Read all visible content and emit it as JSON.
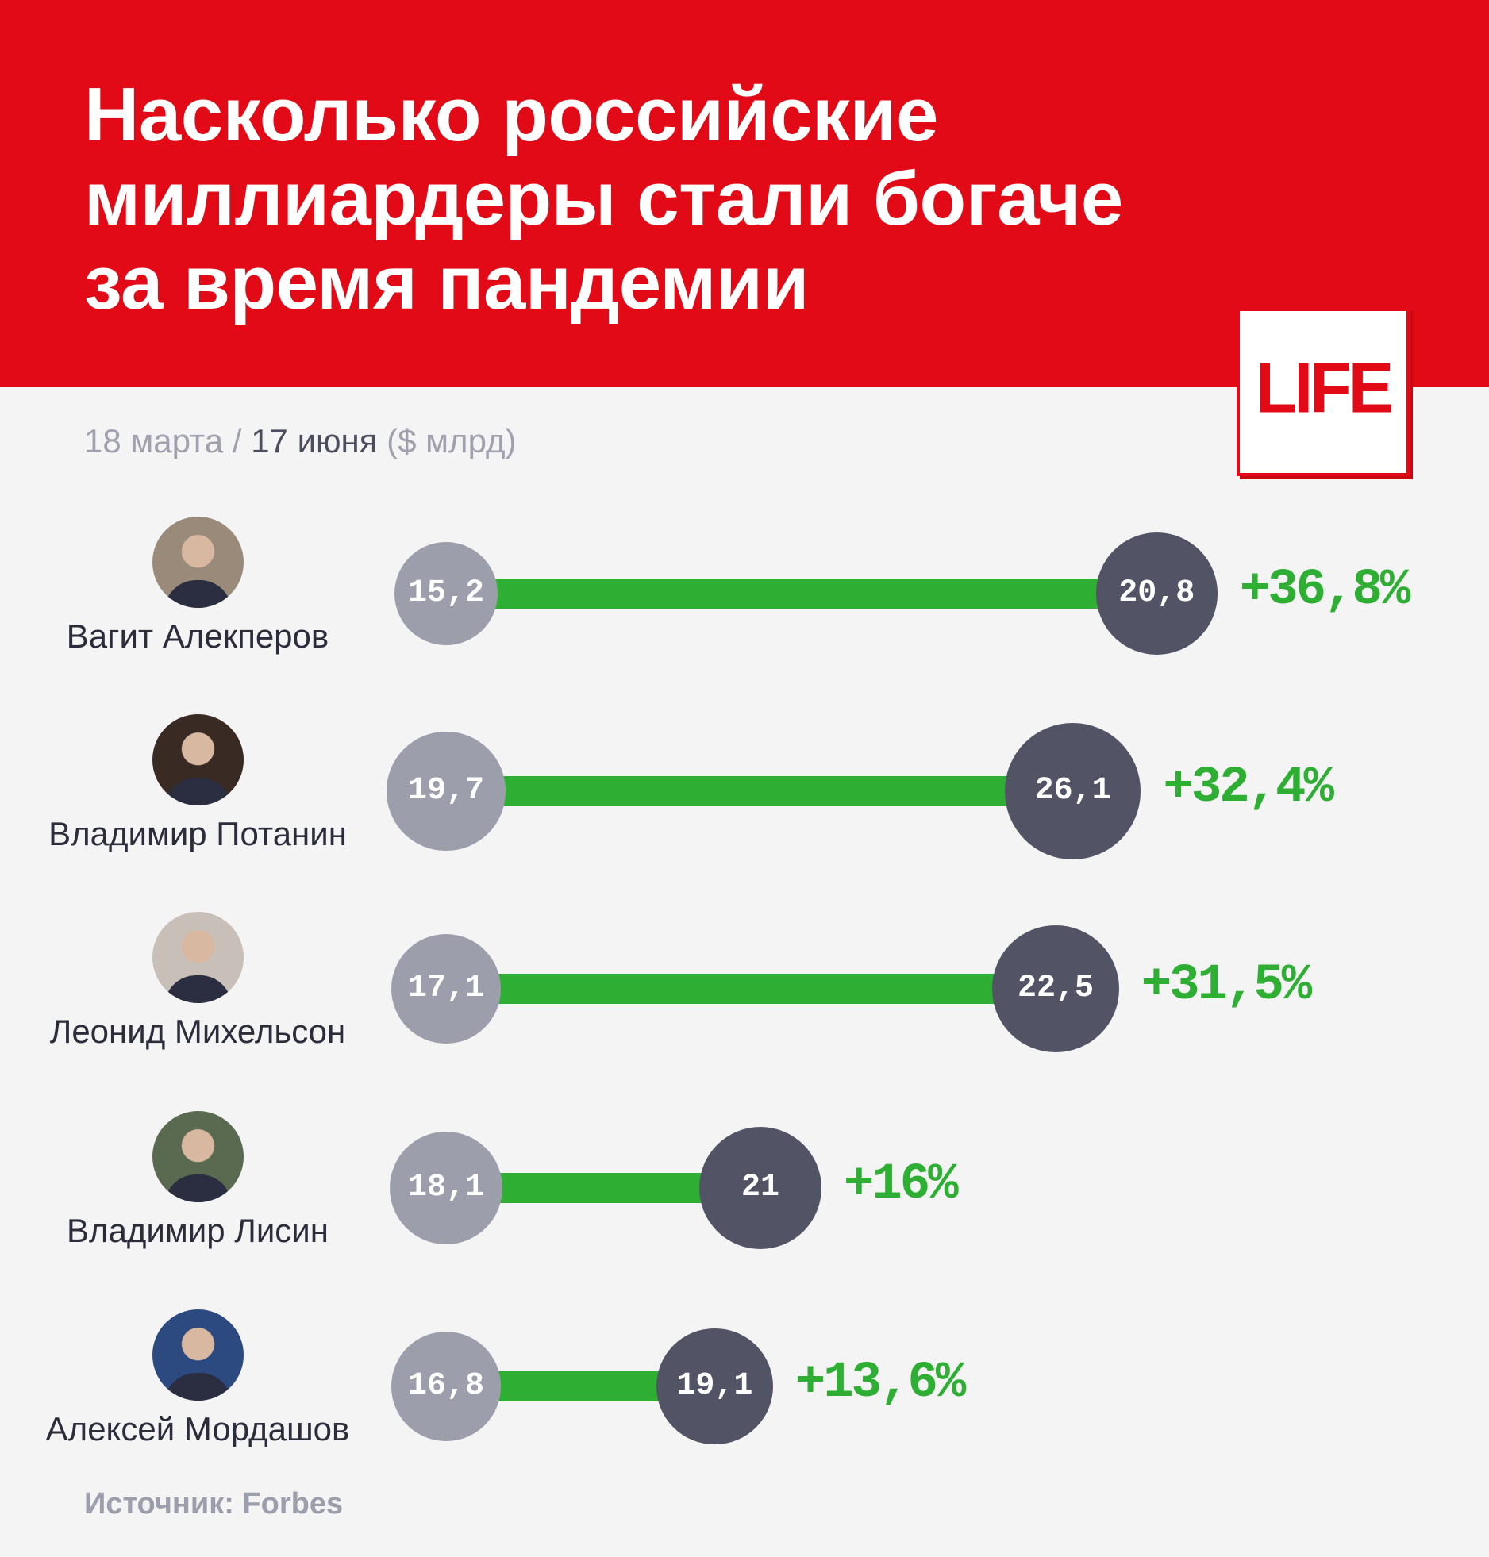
{
  "header": {
    "title_lines": [
      "Насколько российские",
      "миллиардеры стали богаче",
      "за время пандемии"
    ],
    "logo": "LIFE"
  },
  "subtitle": {
    "start": "18 марта",
    "sep": " / ",
    "end": "17 июня",
    "unit": " ($ млрд)"
  },
  "source": "Источник: Forbes",
  "colors": {
    "header": "#e10a16",
    "start": "#9c9eab",
    "end": "#525466",
    "bar": "#2fae34",
    "pct": "#2fae34"
  },
  "chart_data": {
    "type": "dumbbell",
    "title": "Насколько российские миллиардеры стали богаче за время пандемии",
    "series": [
      {
        "name": "18 марта"
      },
      {
        "name": "17 июня"
      }
    ],
    "unit": "$ млрд",
    "rows": [
      {
        "name": "Вагит Алекперов",
        "start": 15.2,
        "end": 20.8,
        "start_label": "15,2",
        "end_label": "20,8",
        "change": 36.8,
        "change_label": "+36,8%"
      },
      {
        "name": "Владимир Потанин",
        "start": 19.7,
        "end": 26.1,
        "start_label": "19,7",
        "end_label": "26,1",
        "change": 32.4,
        "change_label": "+32,4%"
      },
      {
        "name": "Леонид Михельсон",
        "start": 17.1,
        "end": 22.5,
        "start_label": "17,1",
        "end_label": "22,5",
        "change": 31.5,
        "change_label": "+31,5%"
      },
      {
        "name": "Владимир Лисин",
        "start": 18.1,
        "end": 21.0,
        "start_label": "18,1",
        "end_label": "21",
        "change": 16,
        "change_label": "+16%"
      },
      {
        "name": "Алексей Мордашов",
        "start": 16.8,
        "end": 19.1,
        "start_label": "16,8",
        "end_label": "19,1",
        "change": 13.6,
        "change_label": "+13,6%"
      }
    ]
  }
}
